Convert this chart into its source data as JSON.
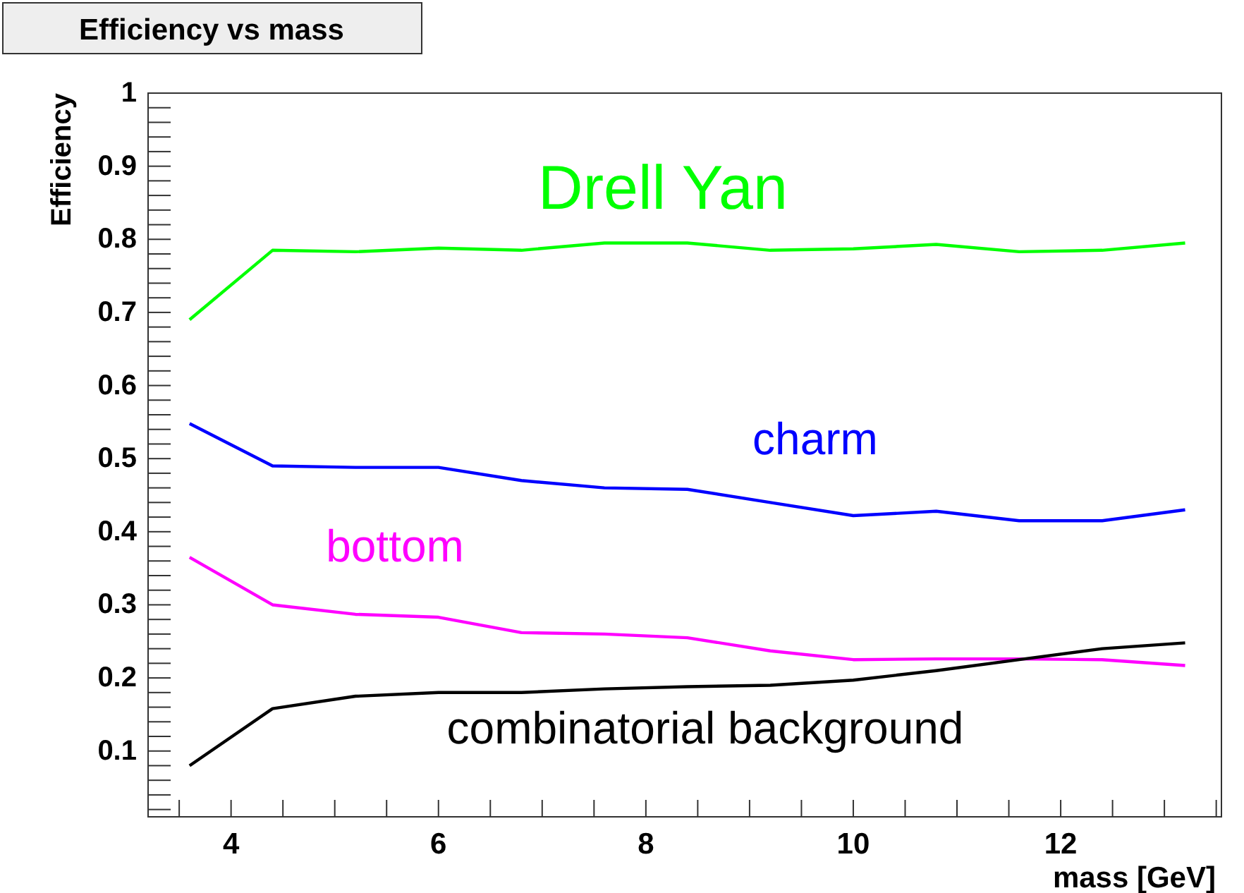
{
  "chart_data": {
    "type": "line",
    "title": "Efficiency vs mass",
    "xlabel": "mass [GeV]",
    "ylabel": "Efficiency",
    "x": [
      3.6,
      4.4,
      5.2,
      6.0,
      6.8,
      7.6,
      8.4,
      9.2,
      10.0,
      10.8,
      11.6,
      12.4,
      13.2
    ],
    "series": [
      {
        "name": "Drell Yan",
        "color": "#00ff00",
        "values": [
          0.69,
          0.785,
          0.783,
          0.788,
          0.785,
          0.795,
          0.795,
          0.785,
          0.787,
          0.793,
          0.783,
          0.785,
          0.795
        ]
      },
      {
        "name": "charm",
        "color": "#0000ff",
        "values": [
          0.548,
          0.49,
          0.488,
          0.488,
          0.47,
          0.46,
          0.458,
          0.44,
          0.422,
          0.428,
          0.415,
          0.415,
          0.43
        ]
      },
      {
        "name": "bottom",
        "color": "#ff00ff",
        "values": [
          0.365,
          0.3,
          0.287,
          0.283,
          0.262,
          0.26,
          0.255,
          0.237,
          0.225,
          0.226,
          0.226,
          0.225,
          0.217
        ]
      },
      {
        "name": "combinatorial background",
        "color": "#000000",
        "values": [
          0.08,
          0.158,
          0.175,
          0.18,
          0.18,
          0.185,
          0.188,
          0.19,
          0.197,
          0.21,
          0.225,
          0.24,
          0.248
        ]
      }
    ],
    "xlim": [
      3.2,
      13.55
    ],
    "ylim": [
      0.01,
      1
    ],
    "xticks": [
      {
        "value": 3.5,
        "label": null
      },
      4,
      {
        "value": 4.5,
        "label": null
      },
      {
        "value": 5,
        "label": null
      },
      {
        "value": 5.5,
        "label": null
      },
      6,
      {
        "value": 6.5,
        "label": null
      },
      {
        "value": 7,
        "label": null
      },
      {
        "value": 7.5,
        "label": null
      },
      8,
      {
        "value": 8.5,
        "label": null
      },
      {
        "value": 9,
        "label": null
      },
      {
        "value": 9.5,
        "label": null
      },
      10,
      {
        "value": 10.5,
        "label": null
      },
      {
        "value": 11,
        "label": null
      },
      {
        "value": 11.5,
        "label": null
      },
      12,
      {
        "value": 12.5,
        "label": null
      },
      {
        "value": 13,
        "label": null
      },
      {
        "value": 13.5,
        "label": null
      }
    ],
    "yticks": [
      {
        "value": 0.02,
        "label": null
      },
      {
        "value": 0.04,
        "label": null
      },
      {
        "value": 0.06,
        "label": null
      },
      {
        "value": 0.08,
        "label": null
      },
      0.1,
      {
        "value": 0.12,
        "label": null
      },
      {
        "value": 0.14,
        "label": null
      },
      {
        "value": 0.16,
        "label": null
      },
      {
        "value": 0.18,
        "label": null
      },
      0.2,
      {
        "value": 0.22,
        "label": null
      },
      {
        "value": 0.24,
        "label": null
      },
      {
        "value": 0.26,
        "label": null
      },
      {
        "value": 0.28,
        "label": null
      },
      0.3,
      {
        "value": 0.32,
        "label": null
      },
      {
        "value": 0.34,
        "label": null
      },
      {
        "value": 0.36,
        "label": null
      },
      {
        "value": 0.38,
        "label": null
      },
      0.4,
      {
        "value": 0.42,
        "label": null
      },
      {
        "value": 0.44,
        "label": null
      },
      {
        "value": 0.46,
        "label": null
      },
      {
        "value": 0.48,
        "label": null
      },
      0.5,
      {
        "value": 0.52,
        "label": null
      },
      {
        "value": 0.54,
        "label": null
      },
      {
        "value": 0.56,
        "label": null
      },
      {
        "value": 0.58,
        "label": null
      },
      0.6,
      {
        "value": 0.62,
        "label": null
      },
      {
        "value": 0.64,
        "label": null
      },
      {
        "value": 0.66,
        "label": null
      },
      {
        "value": 0.68,
        "label": null
      },
      0.7,
      {
        "value": 0.72,
        "label": null
      },
      {
        "value": 0.74,
        "label": null
      },
      {
        "value": 0.76,
        "label": null
      },
      {
        "value": 0.78,
        "label": null
      },
      0.8,
      {
        "value": 0.82,
        "label": null
      },
      {
        "value": 0.84,
        "label": null
      },
      {
        "value": 0.86,
        "label": null
      },
      {
        "value": 0.88,
        "label": null
      },
      0.9,
      {
        "value": 0.92,
        "label": null
      },
      {
        "value": 0.94,
        "label": null
      },
      {
        "value": 0.96,
        "label": null
      },
      {
        "value": 0.98,
        "label": null
      },
      1
    ],
    "grid": false,
    "legend": false,
    "marker": "none",
    "line_style": "solid"
  }
}
